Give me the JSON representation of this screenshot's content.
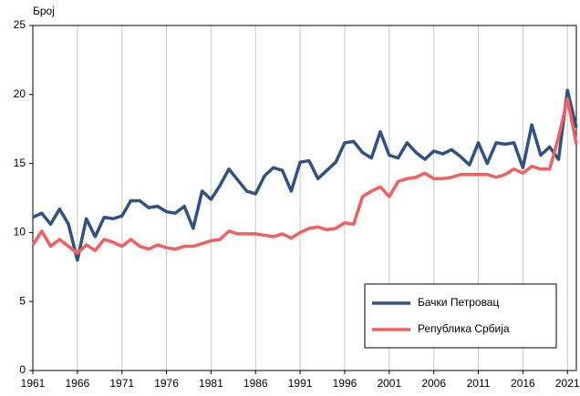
{
  "chart_data": {
    "type": "line",
    "ylabel": "Број",
    "x": [
      1961,
      1962,
      1963,
      1964,
      1965,
      1966,
      1967,
      1968,
      1969,
      1970,
      1971,
      1972,
      1973,
      1974,
      1975,
      1976,
      1977,
      1978,
      1979,
      1980,
      1981,
      1982,
      1983,
      1984,
      1985,
      1986,
      1987,
      1988,
      1989,
      1990,
      1991,
      1992,
      1993,
      1994,
      1995,
      1996,
      1997,
      1998,
      1999,
      2000,
      2001,
      2002,
      2003,
      2004,
      2005,
      2006,
      2007,
      2008,
      2009,
      2010,
      2011,
      2012,
      2013,
      2014,
      2015,
      2016,
      2017,
      2018,
      2019,
      2020,
      2021,
      2022
    ],
    "series": [
      {
        "name": "Бачки Петровац",
        "color": "#2f5282",
        "values": [
          11.1,
          11.4,
          10.6,
          11.7,
          10.6,
          8.0,
          11.0,
          9.7,
          11.1,
          11.0,
          11.2,
          12.3,
          12.3,
          11.8,
          11.9,
          11.5,
          11.4,
          11.9,
          10.3,
          13.0,
          12.4,
          13.4,
          14.6,
          13.8,
          13.0,
          12.8,
          14.1,
          14.7,
          14.5,
          13.0,
          15.1,
          15.2,
          13.9,
          14.5,
          15.1,
          16.5,
          16.6,
          15.8,
          15.4,
          17.3,
          15.6,
          15.4,
          16.5,
          15.8,
          15.3,
          15.9,
          15.7,
          16.0,
          15.5,
          14.9,
          16.5,
          15.0,
          16.5,
          16.4,
          16.5,
          14.7,
          17.8,
          15.6,
          16.2,
          15.3,
          20.3,
          17.6
        ]
      },
      {
        "name": "Република Србија",
        "color": "#f0605f",
        "values": [
          9.1,
          10.1,
          9.0,
          9.5,
          9.0,
          8.5,
          9.1,
          8.7,
          9.5,
          9.3,
          9.0,
          9.5,
          9.0,
          8.8,
          9.1,
          8.9,
          8.8,
          9.0,
          9.0,
          9.2,
          9.4,
          9.5,
          10.1,
          9.9,
          9.9,
          9.9,
          9.8,
          9.7,
          9.9,
          9.6,
          10.0,
          10.3,
          10.4,
          10.2,
          10.3,
          10.7,
          10.6,
          12.6,
          13.0,
          13.3,
          12.6,
          13.7,
          13.9,
          14.0,
          14.3,
          13.9,
          13.9,
          14.0,
          14.2,
          14.2,
          14.2,
          14.2,
          14.0,
          14.2,
          14.6,
          14.3,
          14.8,
          14.6,
          14.6,
          16.9,
          19.7,
          16.4
        ]
      }
    ],
    "xlim": [
      1961,
      2022
    ],
    "xticks": [
      1961,
      1966,
      1971,
      1976,
      1981,
      1986,
      1991,
      1996,
      2001,
      2006,
      2011,
      2016,
      2021
    ],
    "ylim": [
      0,
      25
    ],
    "yticks": [
      0,
      5,
      10,
      15,
      20,
      25
    ],
    "grid": true,
    "legend": "lower right"
  }
}
